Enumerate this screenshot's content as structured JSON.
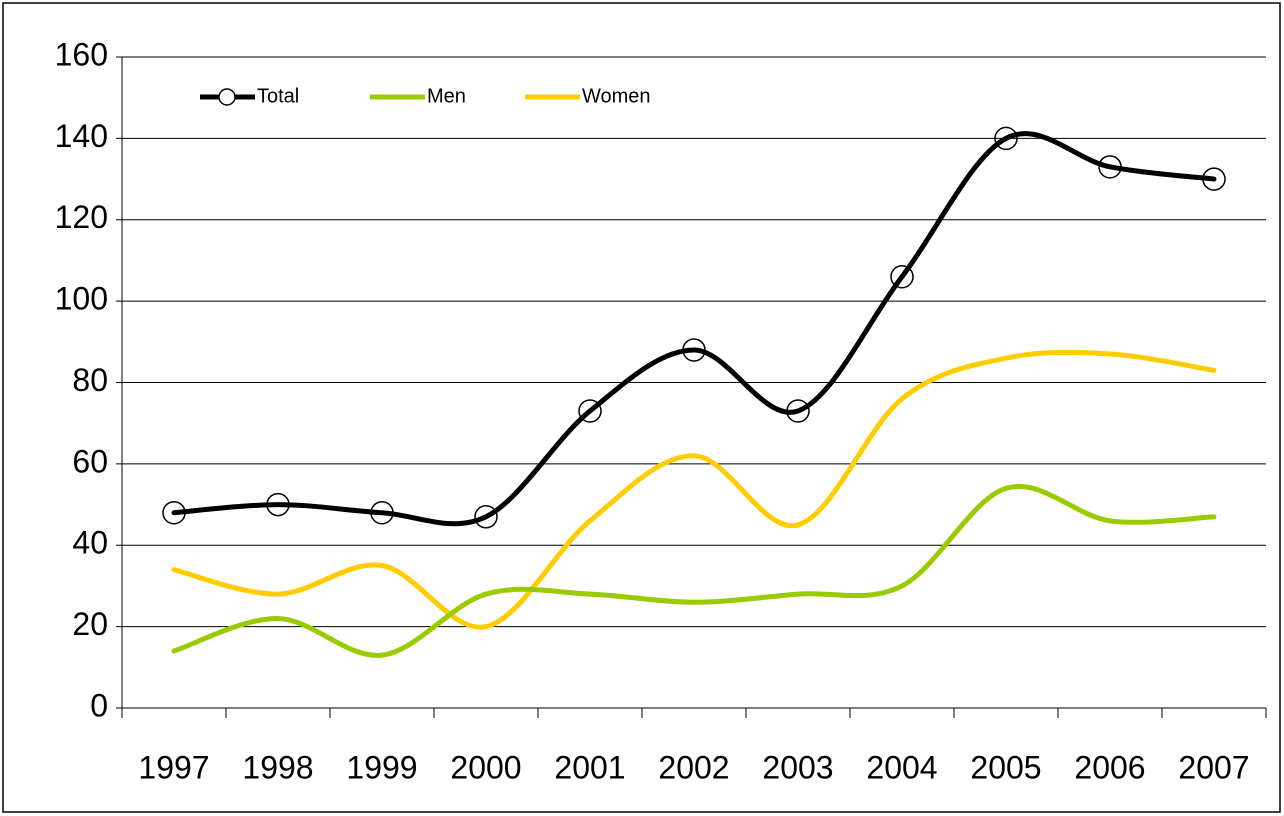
{
  "chart_data": {
    "type": "line",
    "categories": [
      "1997",
      "1998",
      "1999",
      "2000",
      "2001",
      "2002",
      "2003",
      "2004",
      "2005",
      "2006",
      "2007"
    ],
    "series": [
      {
        "name": "Total",
        "color": "#000000",
        "marker": "circle",
        "values": [
          48,
          50,
          48,
          47,
          73,
          88,
          73,
          106,
          140,
          133,
          130
        ]
      },
      {
        "name": "Men",
        "color": "#99cc00",
        "values": [
          14,
          22,
          13,
          28,
          28,
          26,
          28,
          30,
          54,
          46,
          47
        ]
      },
      {
        "name": "Women",
        "color": "#ffcc00",
        "values": [
          34,
          28,
          35,
          20,
          46,
          62,
          45,
          76,
          86,
          87,
          83
        ]
      }
    ],
    "ylim": [
      0,
      160
    ],
    "yticks": [
      0,
      20,
      40,
      60,
      80,
      100,
      120,
      140,
      160
    ],
    "grid": true,
    "smooth": true,
    "legend": "top-left"
  }
}
